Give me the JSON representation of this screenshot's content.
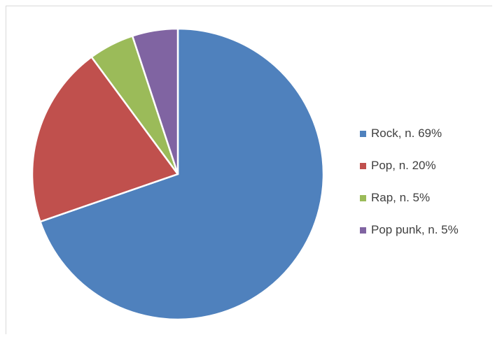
{
  "chart_data": {
    "type": "pie",
    "title": "",
    "categories": [
      "Rock, n. 69%",
      "Pop, n. 20%",
      "Rap, n. 5%",
      "Pop punk, n. 5%"
    ],
    "values": [
      69,
      20,
      5,
      5
    ],
    "colors": [
      "#4f81bd",
      "#c0504d",
      "#9bbb59",
      "#8064a2"
    ],
    "legend_position": "right",
    "start_angle": "top, clockwise"
  }
}
